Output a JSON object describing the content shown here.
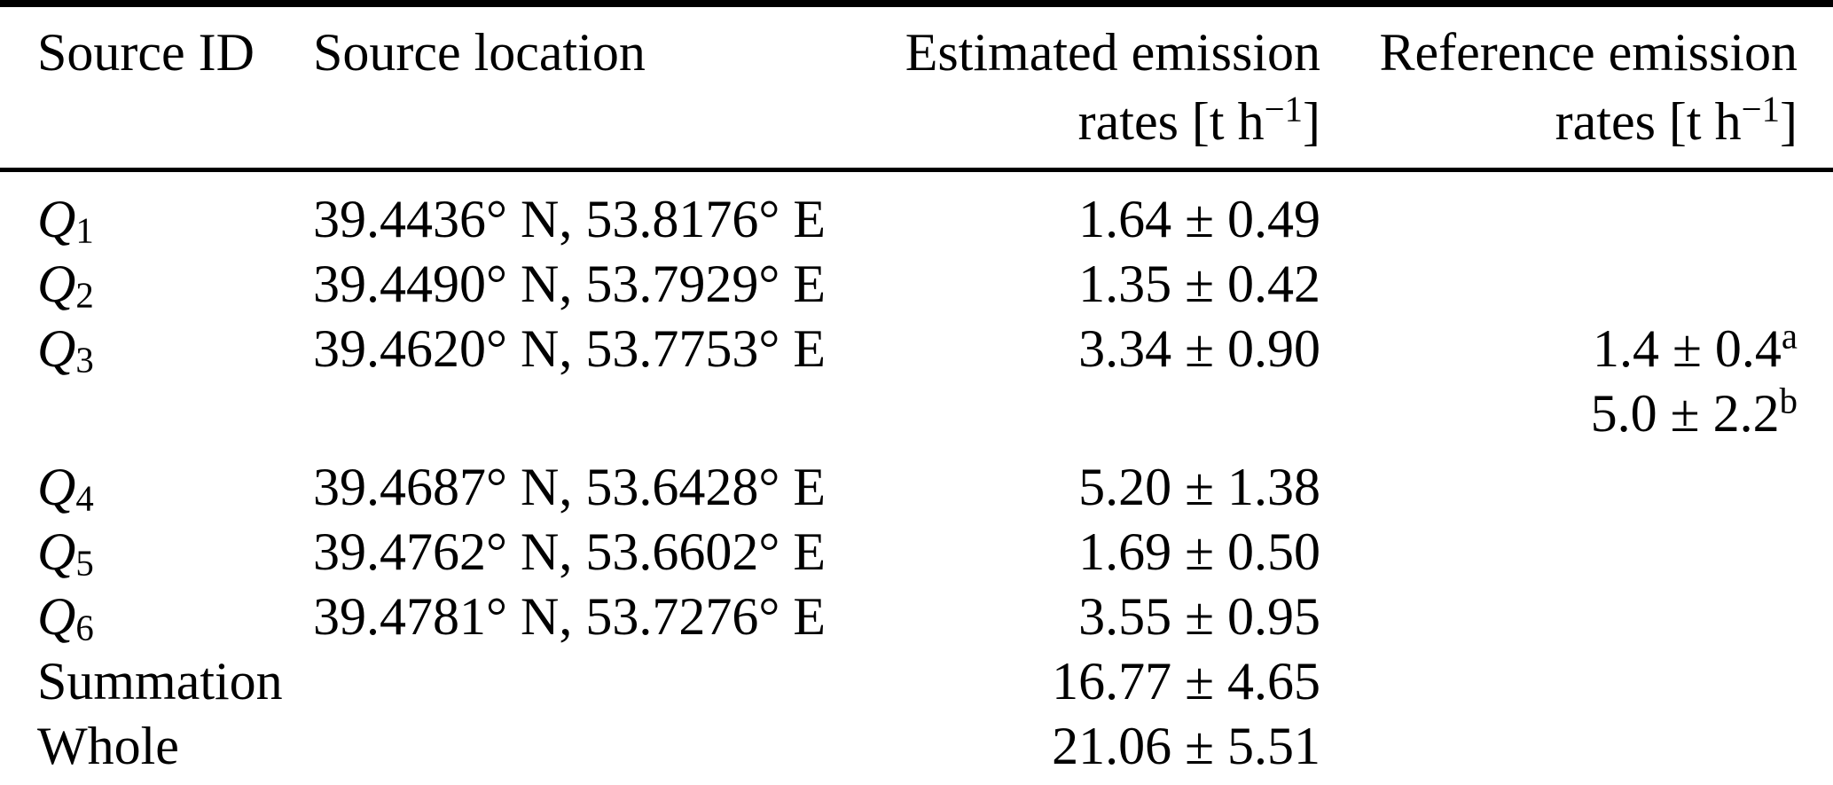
{
  "table": {
    "header": {
      "source_id": "Source ID",
      "source_location": "Source location",
      "estimated_line1": "Estimated emission",
      "reference_line1": "Reference emission",
      "rates_prefix": "rates [t h",
      "rates_sup": "−1",
      "rates_suffix": "]"
    },
    "rows": [
      {
        "id_math": "Q",
        "id_sub": "1",
        "id_text": "",
        "location": "39.4436° N, 53.8176° E",
        "estimated": "1.64 ± 0.49",
        "reference": "",
        "ref_sup": ""
      },
      {
        "id_math": "Q",
        "id_sub": "2",
        "id_text": "",
        "location": "39.4490° N, 53.7929° E",
        "estimated": "1.35 ± 0.42",
        "reference": "",
        "ref_sup": ""
      },
      {
        "id_math": "Q",
        "id_sub": "3",
        "id_text": "",
        "location": "39.4620° N, 53.7753° E",
        "estimated": "3.34 ± 0.90",
        "reference": "1.4 ± 0.4",
        "ref_sup": "a"
      },
      {
        "id_math": "",
        "id_sub": "",
        "id_text": "",
        "location": "",
        "estimated": "",
        "reference": "5.0 ± 2.2",
        "ref_sup": "b"
      },
      {
        "id_math": "Q",
        "id_sub": "4",
        "id_text": "",
        "location": "39.4687° N, 53.6428° E",
        "estimated": "5.20 ± 1.38",
        "reference": "",
        "ref_sup": ""
      },
      {
        "id_math": "Q",
        "id_sub": "5",
        "id_text": "",
        "location": "39.4762° N, 53.6602° E",
        "estimated": "1.69 ± 0.50",
        "reference": "",
        "ref_sup": ""
      },
      {
        "id_math": "Q",
        "id_sub": "6",
        "id_text": "",
        "location": "39.4781° N, 53.7276° E",
        "estimated": "3.55 ± 0.95",
        "reference": "",
        "ref_sup": ""
      },
      {
        "id_math": "",
        "id_sub": "",
        "id_text": "Summation",
        "location": "",
        "estimated": "16.77 ± 4.65",
        "reference": "",
        "ref_sup": ""
      },
      {
        "id_math": "",
        "id_sub": "",
        "id_text": "Whole",
        "location": "",
        "estimated": "21.06 ± 5.51",
        "reference": "",
        "ref_sup": ""
      }
    ]
  }
}
